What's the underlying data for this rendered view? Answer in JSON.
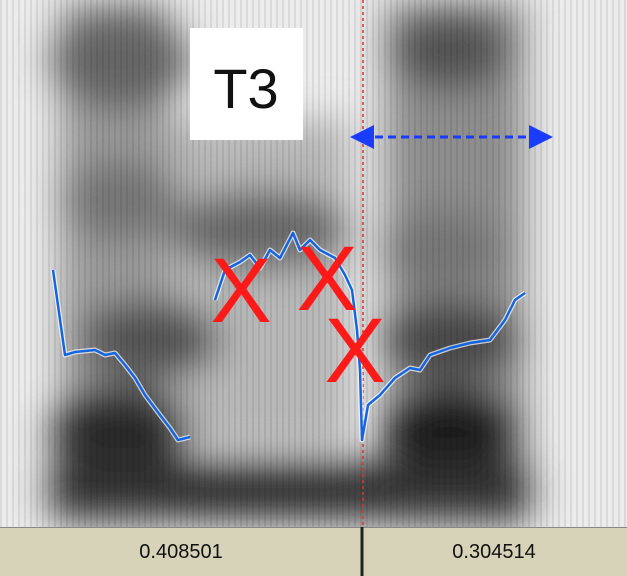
{
  "annotation_box": {
    "label": "T3"
  },
  "marks": [
    "X",
    "X",
    "X"
  ],
  "intervals": [
    {
      "duration": "0.408501"
    },
    {
      "duration": "0.304514"
    }
  ]
}
